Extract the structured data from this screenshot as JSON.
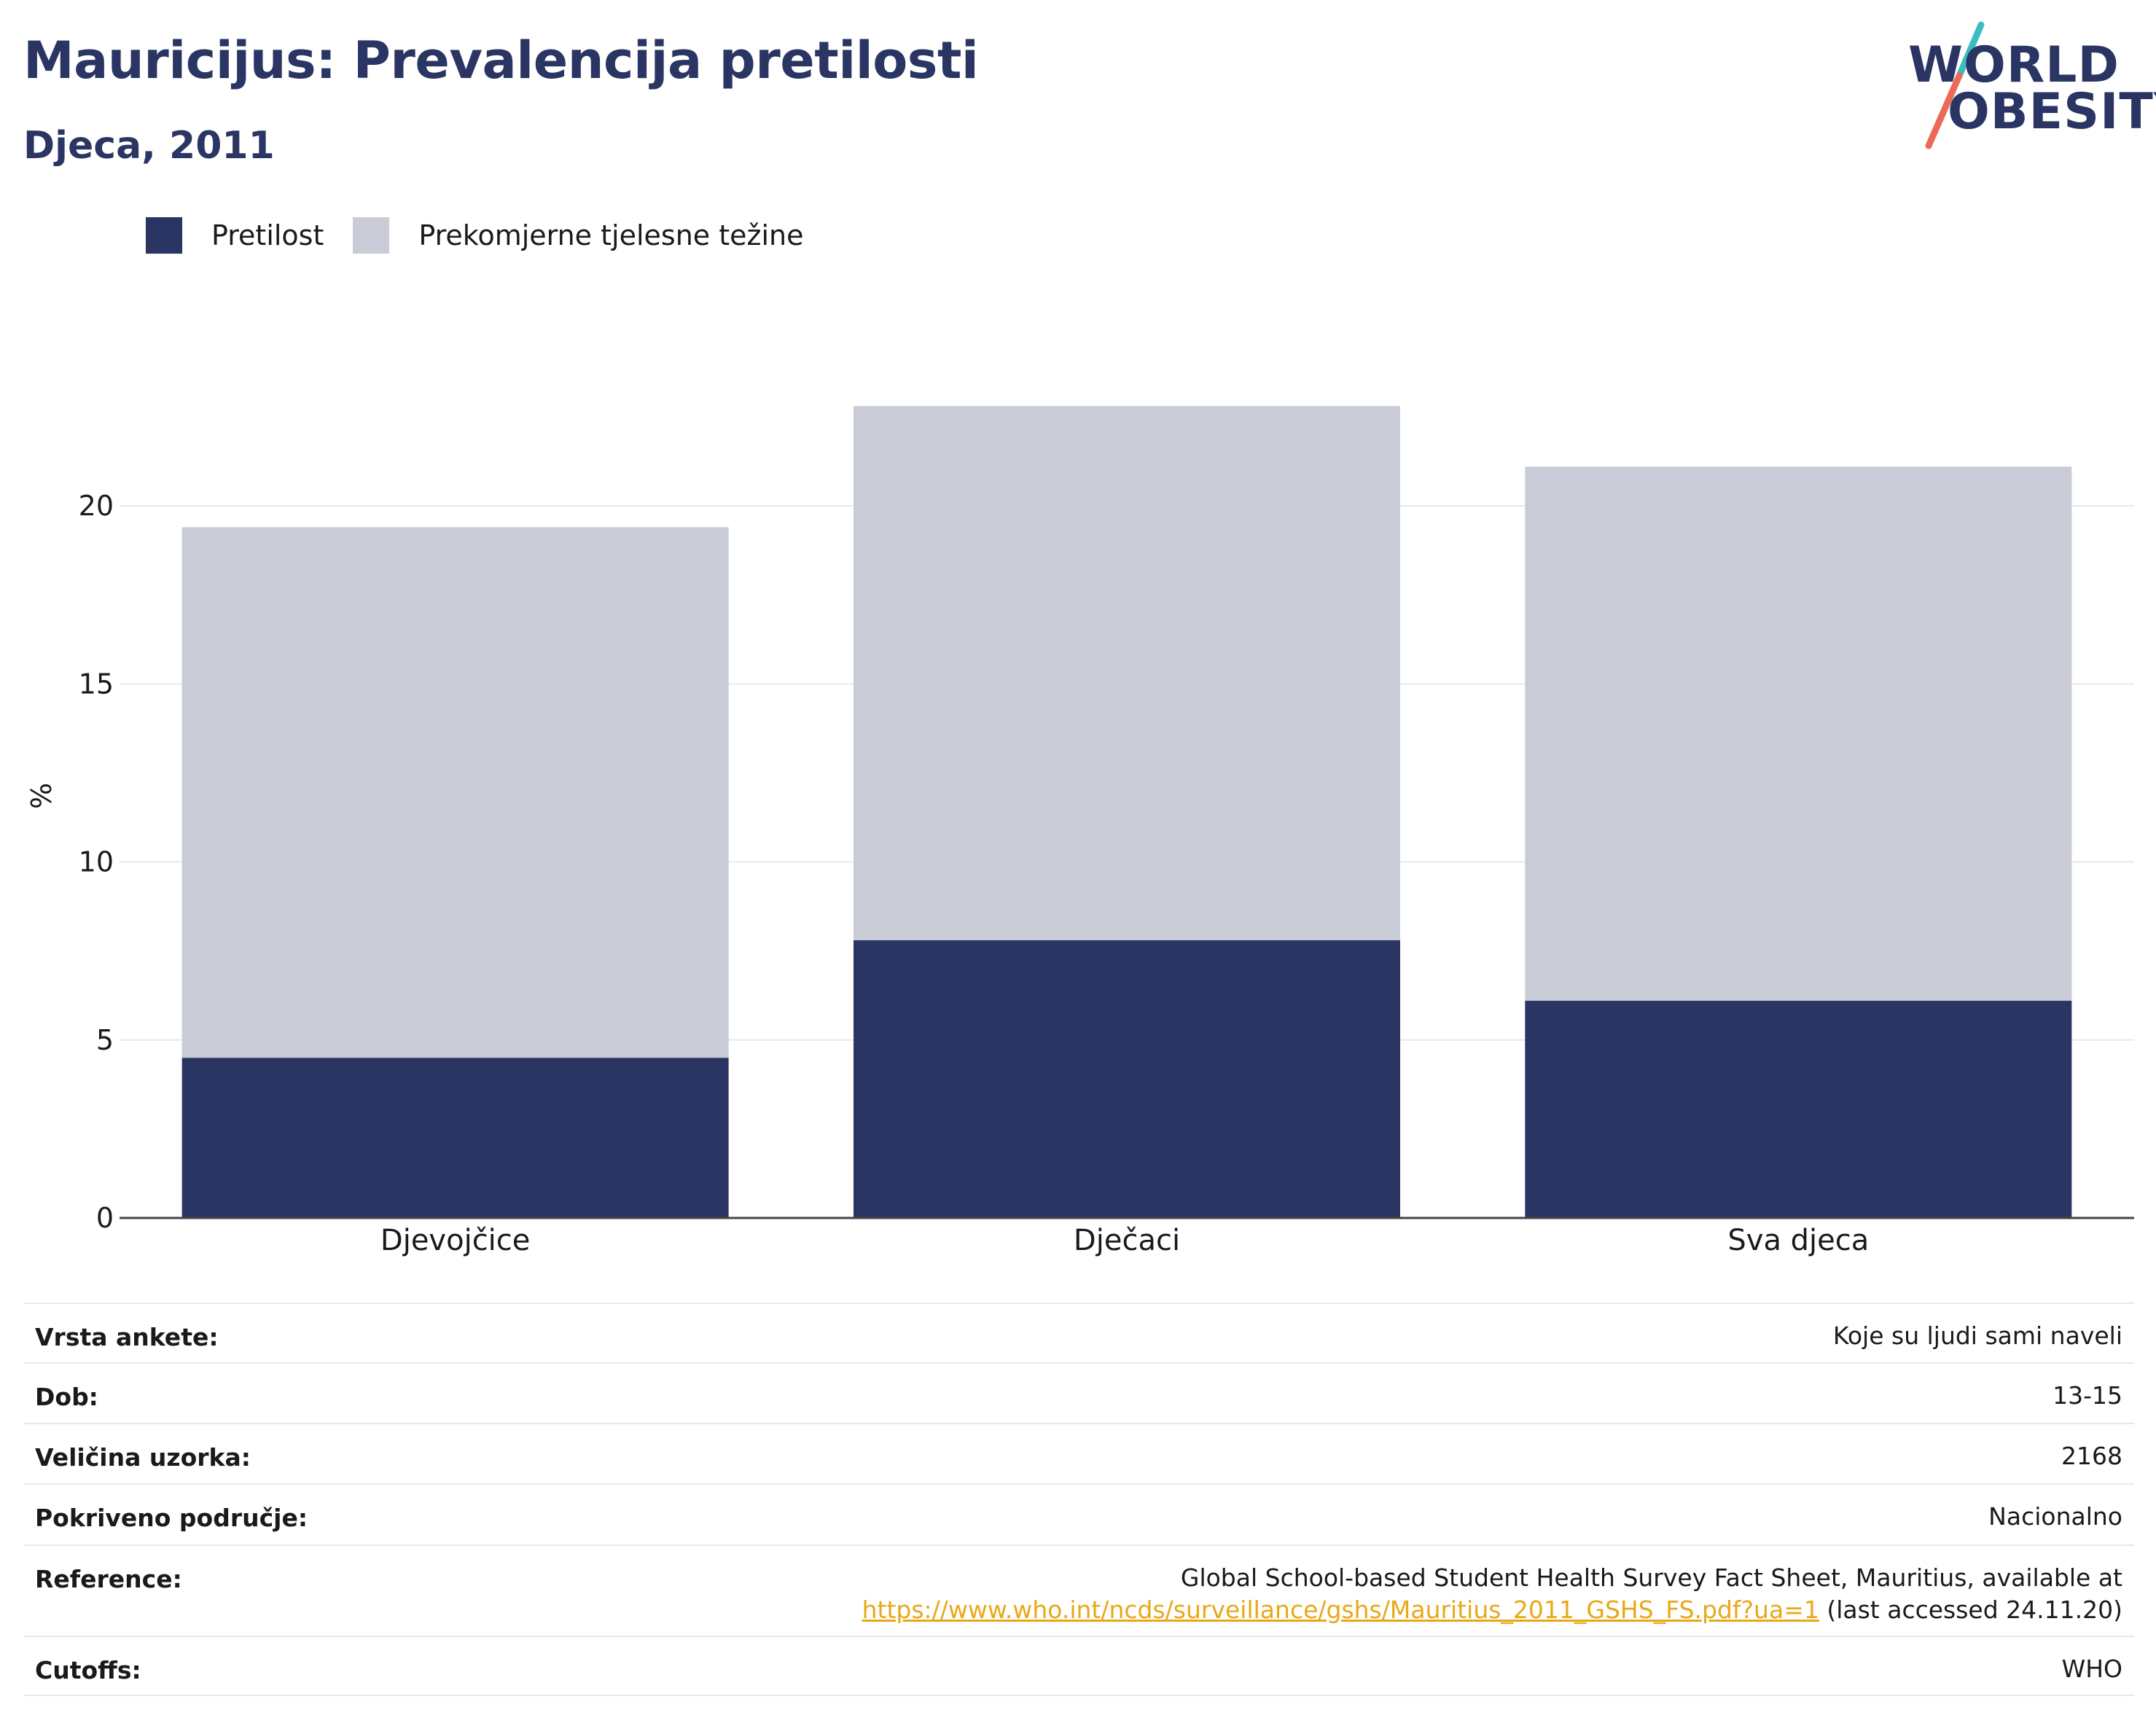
{
  "header": {
    "title": "Mauricijus: Prevalencija pretilosti",
    "subtitle": "Djeca, 2011"
  },
  "logo": {
    "line1": "WORLD",
    "line2": "OBESITY",
    "brand_colors": {
      "navy": "#2a3563",
      "teal": "#3cbcc3",
      "coral": "#ea6a55"
    }
  },
  "legend": {
    "items": [
      {
        "label": "Pretilost",
        "color": "#2a3563"
      },
      {
        "label": "Prekomjerne tjelesne težine",
        "color": "#c9cbd7"
      }
    ]
  },
  "chart_data": {
    "type": "bar",
    "stacked": true,
    "categories": [
      "Djevojčice",
      "Dječaci",
      "Sva djeca"
    ],
    "series": [
      {
        "name": "Pretilost",
        "values": [
          4.5,
          7.8,
          6.1
        ],
        "color": "#2a3563"
      },
      {
        "name": "Prekomjerne tjelesne težine",
        "values": [
          14.9,
          15.0,
          15.0
        ],
        "color": "#c9cbd7"
      }
    ],
    "title": "Mauricijus: Prevalencija pretilosti",
    "subtitle": "Djeca, 2011",
    "xlabel": "",
    "ylabel": "%",
    "yticks": [
      0,
      5,
      10,
      15,
      20
    ],
    "grid": true,
    "legend_position": "top-left"
  },
  "info": {
    "rows": [
      {
        "key": "Vrsta ankete:",
        "value": "Koje su ljudi sami naveli"
      },
      {
        "key": "Dob:",
        "value": "13-15"
      },
      {
        "key": "Veličina uzorka:",
        "value": "2168"
      },
      {
        "key": "Pokriveno područje:",
        "value": "Nacionalno"
      }
    ],
    "reference": {
      "key": "Reference:",
      "text_line1": "Global School-based Student Health Survey Fact Sheet, Mauritius, available at",
      "link": "https://www.who.int/ncds/surveillance/gshs/Mauritius_2011_GSHS_FS.pdf?ua=1",
      "suffix": "(last accessed 24.11.20)"
    },
    "cutoffs": {
      "key": "Cutoffs:",
      "value": "WHO"
    }
  }
}
